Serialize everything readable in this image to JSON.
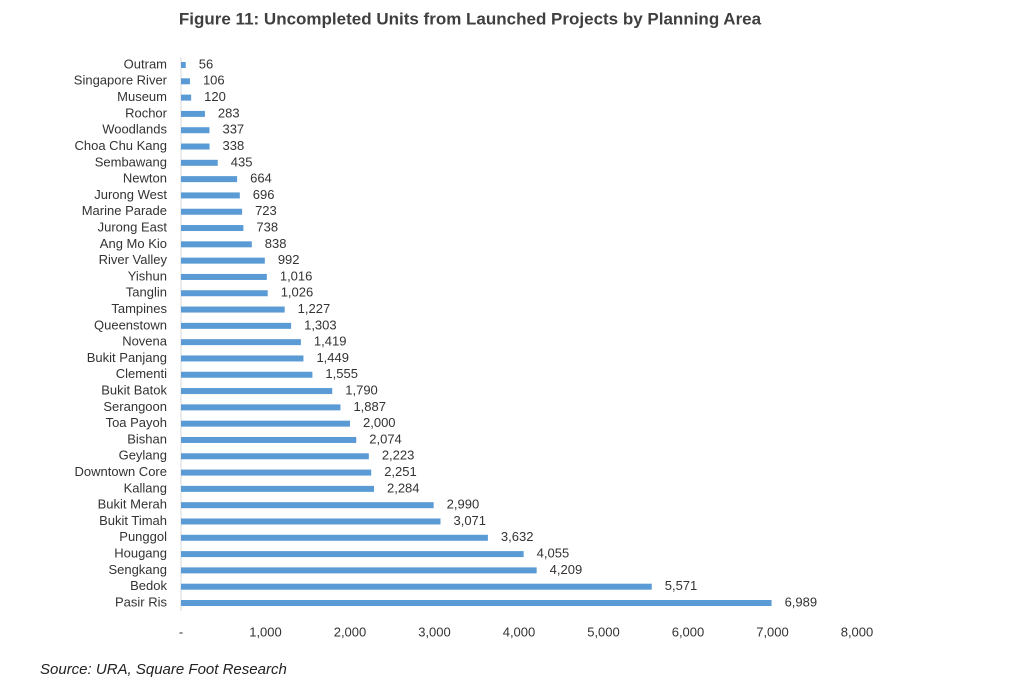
{
  "chart_data": {
    "type": "bar",
    "orientation": "horizontal",
    "title": "Figure 11: Uncompleted Units from Launched Projects by Planning Area",
    "source": "Source: URA, Square Foot Research",
    "categories": [
      "Outram",
      "Singapore River",
      "Museum",
      "Rochor",
      "Woodlands",
      "Choa Chu Kang",
      "Sembawang",
      "Newton",
      "Jurong West",
      "Marine Parade",
      "Jurong East",
      "Ang Mo Kio",
      "River Valley",
      "Yishun",
      "Tanglin",
      "Tampines",
      "Queenstown",
      "Novena",
      "Bukit Panjang",
      "Clementi",
      "Bukit Batok",
      "Serangoon",
      "Toa Payoh",
      "Bishan",
      "Geylang",
      "Downtown Core",
      "Kallang",
      "Bukit Merah",
      "Bukit Timah",
      "Punggol",
      "Hougang",
      "Sengkang",
      "Bedok",
      "Pasir Ris"
    ],
    "values": [
      56,
      106,
      120,
      283,
      337,
      338,
      435,
      664,
      696,
      723,
      738,
      838,
      992,
      1016,
      1026,
      1227,
      1303,
      1419,
      1449,
      1555,
      1790,
      1887,
      2000,
      2074,
      2223,
      2251,
      2284,
      2990,
      3071,
      3632,
      4055,
      4209,
      5571,
      6989
    ],
    "value_labels": [
      "56",
      "106",
      "120",
      "283",
      "337",
      "338",
      "435",
      "664",
      "696",
      "723",
      "738",
      "838",
      "992",
      "1,016",
      "1,026",
      "1,227",
      "1,303",
      "1,419",
      "1,449",
      "1,555",
      "1,790",
      "1,887",
      "2,000",
      "2,074",
      "2,223",
      "2,251",
      "2,284",
      "2,990",
      "3,071",
      "3,632",
      "4,055",
      "4,209",
      "5,571",
      "6,989"
    ],
    "color": "#5b9bd5",
    "xlim": [
      0,
      8000
    ],
    "xticks": [
      {
        "value": 0,
        "label": "-"
      },
      {
        "value": 1000,
        "label": "1,000"
      },
      {
        "value": 2000,
        "label": "2,000"
      },
      {
        "value": 3000,
        "label": "3,000"
      },
      {
        "value": 4000,
        "label": "4,000"
      },
      {
        "value": 5000,
        "label": "5,000"
      },
      {
        "value": 6000,
        "label": "6,000"
      },
      {
        "value": 7000,
        "label": "7,000"
      },
      {
        "value": 8000,
        "label": "8,000"
      }
    ],
    "grid": false
  }
}
